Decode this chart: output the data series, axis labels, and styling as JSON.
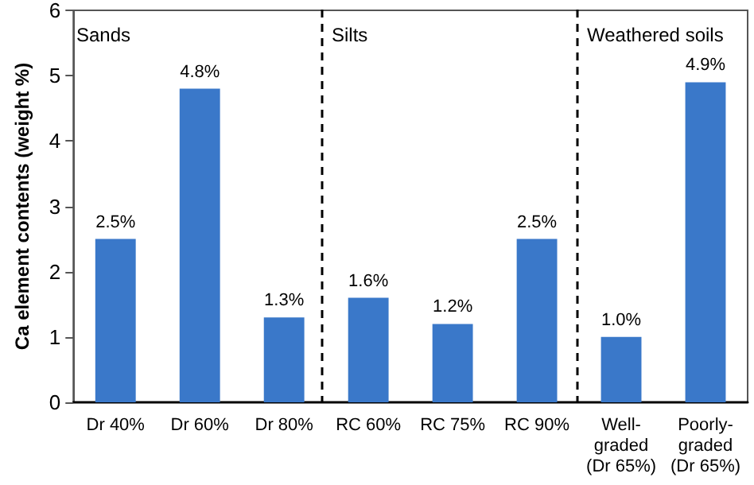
{
  "chart_data": {
    "type": "bar",
    "ylabel": "Ca element contents (weight %)",
    "categories": [
      "Dr 40%",
      "Dr 60%",
      "Dr 80%",
      "RC 60%",
      "RC 75%",
      "RC 90%",
      "Well-\ngraded\n(Dr 65%)",
      "Poorly-\ngraded\n(Dr 65%)"
    ],
    "values": [
      2.5,
      4.8,
      1.3,
      1.6,
      1.2,
      2.5,
      1.0,
      4.9
    ],
    "value_labels": [
      "2.5%",
      "4.8%",
      "1.3%",
      "1.6%",
      "1.2%",
      "2.5%",
      "1.0%",
      "4.9%"
    ],
    "color": "#3a78c9",
    "ylim": [
      0,
      6
    ],
    "yticks": [
      0,
      1,
      2,
      3,
      4,
      5,
      6
    ],
    "grid": false,
    "annotations": [
      "Sands",
      "Silts",
      "Weathered soils"
    ]
  }
}
